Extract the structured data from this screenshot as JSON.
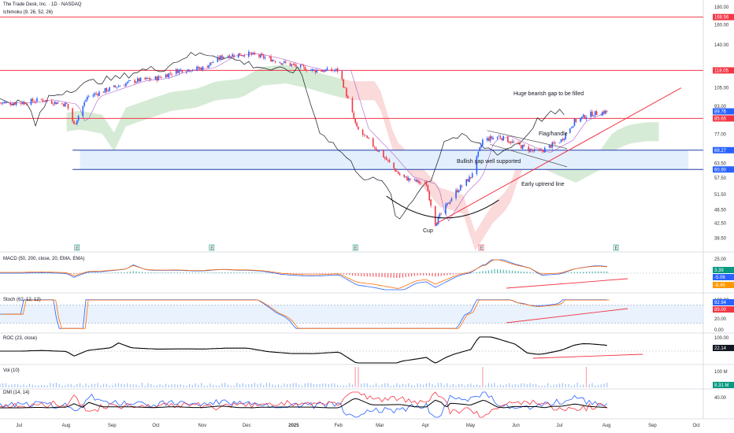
{
  "header": {
    "symbol_line": "The Trade Desk, Inc. · 1D · NASDAQ",
    "indicator_line": "Ichimoku (9, 26, 52, 26)"
  },
  "colors": {
    "up": "#2962ff",
    "down": "#f23645",
    "hline": "#f23645",
    "zone_fill": "#e3effc",
    "zone_border": "#1e3fa8",
    "cloud_bull": "#cfe7cf",
    "cloud_bear": "#f9d3d3",
    "macd_line": "#2962ff",
    "signal_line": "#ff6d00",
    "stoch_k": "#2962ff",
    "stoch_d": "#ff6d00",
    "roc_line": "#000000",
    "dmi_plus": "#2962ff",
    "dmi_minus": "#f23645",
    "adx": "#000000",
    "tag_red": "#f23645",
    "tag_blue": "#2962ff",
    "tag_dark": "#131722",
    "tag_green": "#089981",
    "tag_orange": "#ff9800"
  },
  "panels": {
    "macd": {
      "label": "MACD (50, 200, close, 20, EMA, EMA)",
      "axis": [
        "25.00"
      ],
      "values": [
        "3.39",
        "-5.06",
        "-8.45"
      ]
    },
    "stoch": {
      "label": "Stoch (62, 12, 12)",
      "axis": [
        "100.00",
        "80.00",
        "20.00",
        "0.00"
      ],
      "values": [
        "92.94",
        "89.00"
      ]
    },
    "roc": {
      "label": "ROC (23, close)",
      "axis": [
        "100.00"
      ],
      "values": [
        "22.14"
      ]
    },
    "vol": {
      "label": "Vol (10)",
      "axis": [
        "100 M"
      ],
      "values": [
        "8.31 M"
      ]
    },
    "dmi": {
      "label": "DMI (14, 14)",
      "axis": [
        "40.00"
      ]
    }
  },
  "annotations": {
    "gap_to_fill": "Huge bearish gap to be filled",
    "flag": "Flag/handle",
    "bullish_gap": "Bullish gap well supported",
    "uptrend": "Early uptrend line",
    "cup": "Cup"
  },
  "event_markers": [
    "E",
    "E",
    "E",
    "E",
    "E"
  ],
  "chart_data": {
    "type": "candlestick",
    "title": "The Trade Desk, Inc. · 1D · NASDAQ",
    "price_axis": {
      "scale": "log",
      "ticks": [
        180,
        160,
        140,
        105,
        93,
        77,
        63.5,
        57.5,
        51.5,
        46.5,
        42.5,
        38.5
      ],
      "range": [
        37,
        185
      ]
    },
    "price_tags": [
      168.56,
      118.05,
      89.76,
      85.65,
      69.27,
      60.9
    ],
    "x_labels": [
      "Jul",
      "Aug",
      "Sep",
      "Oct",
      "Nov",
      "Dec",
      "2025",
      "Feb",
      "Mar",
      "Apr",
      "May",
      "Jun",
      "Jul",
      "Aug",
      "Sep",
      "Oct"
    ],
    "horizontal_lines": [
      168.56,
      118.05,
      85.65
    ],
    "support_zone": [
      60.9,
      69.27
    ],
    "series": [
      {
        "name": "price",
        "points": [
          [
            "2024-07-01",
            95
          ],
          [
            "2024-07-15",
            97
          ],
          [
            "2024-08-01",
            94
          ],
          [
            "2024-08-06",
            82
          ],
          [
            "2024-08-15",
            99
          ],
          [
            "2024-09-01",
            105
          ],
          [
            "2024-09-15",
            110
          ],
          [
            "2024-10-01",
            112
          ],
          [
            "2024-10-15",
            118
          ],
          [
            "2024-11-01",
            120
          ],
          [
            "2024-11-15",
            130
          ],
          [
            "2024-12-01",
            132
          ],
          [
            "2024-12-15",
            128
          ],
          [
            "2025-01-01",
            122
          ],
          [
            "2025-01-15",
            118
          ],
          [
            "2025-02-01",
            118
          ],
          [
            "2025-02-13",
            80
          ],
          [
            "2025-03-01",
            68
          ],
          [
            "2025-03-15",
            58
          ],
          [
            "2025-04-01",
            55
          ],
          [
            "2025-04-07",
            42.5
          ],
          [
            "2025-04-20",
            52
          ],
          [
            "2025-05-01",
            58
          ],
          [
            "2025-05-09",
            74
          ],
          [
            "2025-05-20",
            76
          ],
          [
            "2025-06-01",
            72
          ],
          [
            "2025-06-15",
            68
          ],
          [
            "2025-07-01",
            74
          ],
          [
            "2025-07-10",
            84
          ],
          [
            "2025-07-20",
            88
          ],
          [
            "2025-08-01",
            89.76
          ]
        ]
      }
    ]
  }
}
